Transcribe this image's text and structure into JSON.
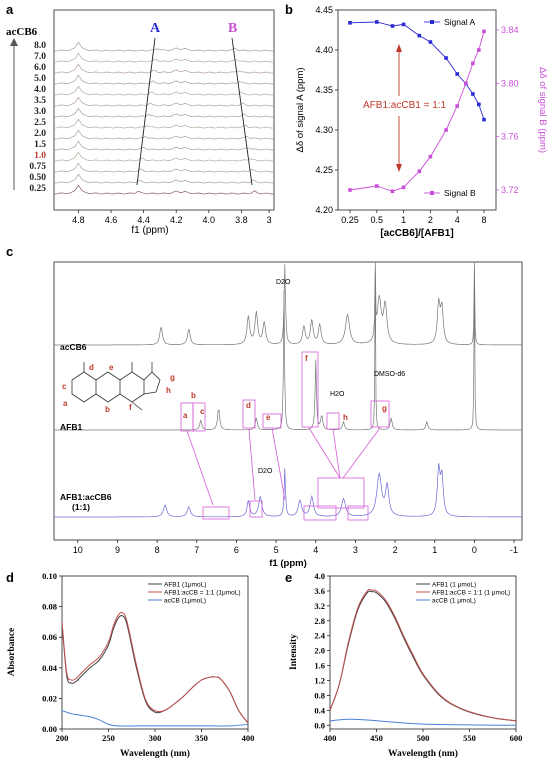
{
  "panel_labels": [
    "a",
    "b",
    "c",
    "d",
    "e"
  ],
  "colors": {
    "signal_a": "#2b2bd6",
    "signal_b": "#c84fd6",
    "annotation_red": "#c0392b",
    "afb1_line": "#404040",
    "complex_line": "#c0504d",
    "accb_line": "#4a7fd6",
    "nmr_complex": "#6a6ad6",
    "box_magenta": "#d65cd6"
  },
  "chart_data": [
    {
      "panel": "a",
      "type": "line",
      "title": "",
      "xlabel": "f1 (ppm)",
      "ylabel": "",
      "xlim": [
        4.95,
        3.6
      ],
      "xticks": [
        "4.8",
        "4.6",
        "4.4",
        "4.2",
        "4.0",
        "3.8",
        "3"
      ],
      "concentration_label": "acCB6",
      "concentrations": [
        "8.0",
        "7.0",
        "6.0",
        "5.0",
        "4.0",
        "3.5",
        "3.0",
        "2.5",
        "2.0",
        "1.5",
        "1.0",
        "0.75",
        "0.50",
        "0.25"
      ],
      "highlight_concentration": "1.0",
      "peak_labels": [
        "A",
        "B"
      ]
    },
    {
      "panel": "b",
      "type": "line",
      "title": "",
      "xlabel": "[acCB6]/[AFB1]",
      "ylabel": "Δδ of signal A (ppm)",
      "y2label": "Δδ of signal B (ppm)",
      "xscale": "log",
      "xticks": [
        "0.25",
        "0.5",
        "1",
        "2",
        "4",
        "8"
      ],
      "ylim": [
        4.2,
        4.45
      ],
      "yticks": [
        "4.20",
        "4.25",
        "4.30",
        "4.35",
        "4.40",
        "4.45"
      ],
      "y2lim": [
        3.705,
        3.855
      ],
      "y2ticks": [
        "3.72",
        "3.76",
        "3.80",
        "3.84"
      ],
      "legend": "top-right",
      "annotation": "AFB1:acCB1 = 1:1",
      "series": [
        {
          "name": "Signal A",
          "axis": "left",
          "x": [
            0.25,
            0.5,
            0.75,
            1,
            1.5,
            2,
            3,
            4,
            5,
            6,
            7,
            8
          ],
          "values": [
            4.434,
            4.435,
            4.43,
            4.432,
            4.418,
            4.41,
            4.39,
            4.37,
            4.358,
            4.345,
            4.332,
            4.313
          ]
        },
        {
          "name": "Signal B",
          "axis": "right",
          "x": [
            0.25,
            0.5,
            0.75,
            1,
            1.5,
            2,
            3,
            4,
            5,
            6,
            7,
            8
          ],
          "values": [
            3.72,
            3.723,
            3.719,
            3.722,
            3.734,
            3.745,
            3.765,
            3.783,
            3.8,
            3.815,
            3.825,
            3.839
          ]
        }
      ]
    },
    {
      "panel": "c",
      "type": "line",
      "title": "",
      "xlabel": "f1 (ppm)",
      "ylabel": "",
      "xlim": [
        10.6,
        -1.2
      ],
      "xticks": [
        "10",
        "9",
        "8",
        "7",
        "6",
        "5",
        "4",
        "3",
        "2",
        "1",
        "0",
        "-1"
      ],
      "series_labels": [
        "acCB6",
        "AFB1",
        "AFB1:acCB6\n(1:1)"
      ],
      "annotations": [
        "D2O",
        "DMSO-d6",
        "H2O",
        "D2O"
      ],
      "peak_letters": [
        "a",
        "b",
        "c",
        "d",
        "e",
        "f",
        "g",
        "h"
      ],
      "structure_letters": [
        "a",
        "b",
        "c",
        "d",
        "e",
        "f",
        "g",
        "h"
      ]
    },
    {
      "panel": "d",
      "type": "line",
      "title": "",
      "xlabel": "Wavelength (nm)",
      "ylabel": "Absorbance",
      "xlim": [
        200,
        400
      ],
      "ylim": [
        0,
        0.1
      ],
      "xticks": [
        "200",
        "250",
        "300",
        "350",
        "400"
      ],
      "yticks": [
        "0.00",
        "0.02",
        "0.04",
        "0.06",
        "0.08",
        "0.10"
      ],
      "legend": "top-right",
      "series": [
        {
          "name": "AFB1 (1μmoL)",
          "x": [
            200,
            205,
            210,
            215,
            220,
            230,
            240,
            250,
            255,
            260,
            265,
            270,
            280,
            290,
            300,
            310,
            320,
            330,
            340,
            350,
            360,
            365,
            370,
            380,
            390,
            400
          ],
          "values": [
            0.07,
            0.035,
            0.03,
            0.031,
            0.034,
            0.04,
            0.045,
            0.055,
            0.065,
            0.072,
            0.074,
            0.068,
            0.04,
            0.018,
            0.011,
            0.012,
            0.016,
            0.021,
            0.027,
            0.032,
            0.034,
            0.034,
            0.033,
            0.025,
            0.012,
            0.004
          ]
        },
        {
          "name": "AFB1:acCB = 1:1 (1μmoL)",
          "x": [
            200,
            205,
            210,
            215,
            220,
            230,
            240,
            250,
            255,
            260,
            265,
            270,
            280,
            290,
            300,
            310,
            320,
            330,
            340,
            350,
            360,
            365,
            370,
            380,
            390,
            400
          ],
          "values": [
            0.07,
            0.037,
            0.032,
            0.033,
            0.036,
            0.042,
            0.047,
            0.057,
            0.067,
            0.074,
            0.076,
            0.07,
            0.042,
            0.019,
            0.012,
            0.012,
            0.016,
            0.021,
            0.027,
            0.032,
            0.034,
            0.034,
            0.033,
            0.025,
            0.012,
            0.004
          ]
        },
        {
          "name": "acCB (1μmoL)",
          "x": [
            200,
            210,
            220,
            230,
            240,
            250,
            260,
            280,
            300,
            320,
            340,
            360,
            380,
            400
          ],
          "values": [
            0.012,
            0.01,
            0.009,
            0.008,
            0.006,
            0.003,
            0.002,
            0.002,
            0.002,
            0.002,
            0.002,
            0.002,
            0.002,
            0.003
          ]
        }
      ]
    },
    {
      "panel": "e",
      "type": "line",
      "title": "",
      "xlabel": "Wavelength (nm)",
      "ylabel": "Intensity",
      "xlim": [
        400,
        600
      ],
      "ylim": [
        -0.1,
        4.0
      ],
      "xticks": [
        "400",
        "450",
        "500",
        "550",
        "600"
      ],
      "yticks": [
        "0.0",
        "0.4",
        "0.8",
        "1.2",
        "1.6",
        "2.0",
        "2.4",
        "2.8",
        "3.2",
        "3.6",
        "4.0"
      ],
      "legend": "top-right",
      "series": [
        {
          "name": "AFB1 (1 μmoL)",
          "x": [
            400,
            410,
            420,
            430,
            440,
            445,
            450,
            460,
            470,
            480,
            490,
            500,
            520,
            540,
            560,
            580,
            600
          ],
          "values": [
            0.4,
            1.1,
            2.2,
            3.1,
            3.55,
            3.58,
            3.55,
            3.3,
            2.85,
            2.3,
            1.8,
            1.35,
            0.75,
            0.45,
            0.28,
            0.18,
            0.12
          ]
        },
        {
          "name": "AFB1:acCB = 1:1 (1 μmoL)",
          "x": [
            400,
            410,
            420,
            430,
            440,
            445,
            450,
            460,
            470,
            480,
            490,
            500,
            520,
            540,
            560,
            580,
            600
          ],
          "values": [
            0.4,
            1.1,
            2.25,
            3.15,
            3.6,
            3.62,
            3.6,
            3.35,
            2.9,
            2.35,
            1.85,
            1.38,
            0.77,
            0.46,
            0.29,
            0.18,
            0.12
          ]
        },
        {
          "name": "acCB (1 μmoL)",
          "x": [
            400,
            420,
            440,
            460,
            480,
            500,
            550,
            600
          ],
          "values": [
            0.12,
            0.16,
            0.14,
            0.1,
            0.06,
            0.03,
            0.01,
            0.0
          ]
        }
      ]
    }
  ]
}
